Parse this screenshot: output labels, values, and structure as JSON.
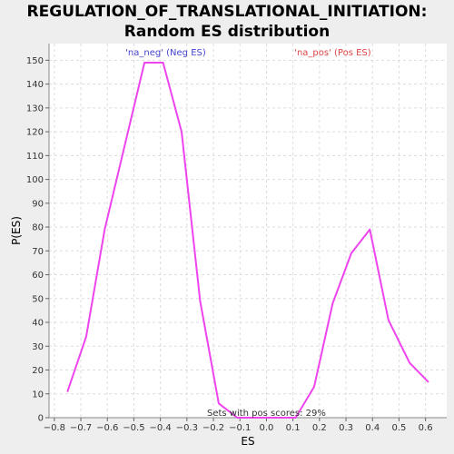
{
  "title_lines": [
    "REGULATION_OF_TRANSLATIONAL_INITIATION:",
    "Random ES distribution"
  ],
  "colors": {
    "line": "#ee44ee",
    "neg_label": "#4444cc",
    "pos_label": "#dd4444",
    "grid": "#dddddd",
    "plot_bg": "#ffffff"
  },
  "chart_data": {
    "type": "line",
    "title": "REGULATION_OF_TRANSLATIONAL_INITIATION: Random ES distribution",
    "xlabel": "ES",
    "ylabel": "P(ES)",
    "xlim": [
      -0.82,
      0.68
    ],
    "ylim": [
      0,
      157
    ],
    "grid": true,
    "x_ticks": [
      -0.8,
      -0.7,
      -0.6,
      -0.5,
      -0.4,
      -0.3,
      -0.2,
      -0.1,
      0.0,
      0.1,
      0.2,
      0.3,
      0.4,
      0.5,
      0.6
    ],
    "x_tick_labels": [
      "−0.8",
      "−0.7",
      "−0.6",
      "−0.5",
      "−0.4",
      "−0.3",
      "−0.2",
      "−0.1",
      "0.0",
      "0.1",
      "0.2",
      "0.3",
      "0.4",
      "0.5",
      "0.6"
    ],
    "y_ticks": [
      0,
      10,
      20,
      30,
      40,
      50,
      60,
      70,
      80,
      90,
      100,
      110,
      120,
      130,
      140,
      150
    ],
    "series": [
      {
        "x": [
          -0.75,
          -0.68,
          -0.61,
          -0.46,
          -0.39,
          -0.32,
          -0.25,
          -0.18,
          -0.11,
          -0.04,
          0.04,
          0.11,
          0.18,
          0.25,
          0.32,
          0.39,
          0.46,
          0.54,
          0.61
        ],
        "y": [
          11,
          34,
          79,
          149,
          149,
          120,
          49,
          6,
          0,
          0,
          0,
          0,
          13,
          48,
          69,
          79,
          41,
          23,
          15
        ]
      }
    ],
    "annotations": {
      "neg": "'na_neg' (Neg ES)",
      "pos": "'na_pos' (Pos ES)",
      "sets": "Sets with pos scores: 29%"
    }
  }
}
